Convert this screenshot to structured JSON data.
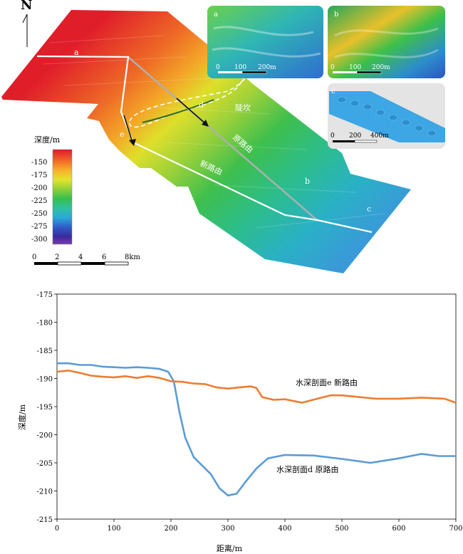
{
  "map": {
    "north_label": "N",
    "depth_legend": {
      "title": "深度/m",
      "ticks": [
        "-150",
        "-175",
        "-200",
        "-225",
        "-250",
        "-275",
        "-300"
      ]
    },
    "scale_bar": {
      "labels": [
        "0",
        "2",
        "4",
        "6",
        "8km"
      ]
    },
    "route_labels": {
      "old": "原路由",
      "new": "新路由",
      "cliff": "陡坎"
    },
    "point_labels": [
      "a",
      "b",
      "c",
      "d",
      "e"
    ],
    "insets": [
      {
        "label": "a",
        "scale_labels": [
          "0",
          "100",
          "200m"
        ]
      },
      {
        "label": "b",
        "scale_labels": [
          "0",
          "100",
          "200m"
        ]
      },
      {
        "label": "c",
        "scale_labels": [
          "0",
          "200",
          "400m"
        ]
      }
    ]
  },
  "chart_data": {
    "type": "line",
    "xlabel": "距离/m",
    "ylabel": "深度/m",
    "xlim": [
      0,
      700
    ],
    "ylim": [
      -215,
      -175
    ],
    "x_ticks": [
      "0",
      "100",
      "200",
      "300",
      "400",
      "500",
      "600",
      "700"
    ],
    "y_ticks": [
      "-175",
      "-180",
      "-185",
      "-190",
      "-195",
      "-200",
      "-205",
      "-210",
      "-215"
    ],
    "series": [
      {
        "name": "水深剖面d 原路由",
        "color": "#5b9bd5",
        "x": [
          0,
          20,
          40,
          60,
          80,
          100,
          120,
          140,
          160,
          180,
          195,
          205,
          215,
          225,
          240,
          255,
          270,
          285,
          300,
          315,
          330,
          350,
          370,
          400,
          450,
          500,
          550,
          600,
          640,
          670,
          700
        ],
        "y": [
          -187.3,
          -187.3,
          -187.6,
          -187.6,
          -187.9,
          -188.0,
          -188.1,
          -188.0,
          -188.1,
          -188.3,
          -188.8,
          -190.5,
          -196.0,
          -200.5,
          -204.0,
          -205.5,
          -207.0,
          -209.5,
          -210.8,
          -210.5,
          -208.5,
          -206.0,
          -204.2,
          -203.6,
          -203.7,
          -204.3,
          -205.0,
          -204.2,
          -203.4,
          -203.8,
          -203.8
        ]
      },
      {
        "name": "水深剖面e 新路由",
        "color": "#ed7d31",
        "x": [
          0,
          20,
          40,
          60,
          80,
          100,
          120,
          140,
          160,
          180,
          200,
          220,
          240,
          260,
          280,
          300,
          320,
          340,
          350,
          360,
          380,
          400,
          430,
          460,
          480,
          500,
          530,
          560,
          600,
          640,
          680,
          700
        ],
        "y": [
          -188.8,
          -188.6,
          -189.0,
          -189.5,
          -189.7,
          -189.8,
          -189.6,
          -189.9,
          -189.6,
          -189.9,
          -190.5,
          -190.6,
          -190.9,
          -191.0,
          -191.6,
          -191.8,
          -191.6,
          -191.4,
          -191.7,
          -193.3,
          -193.8,
          -193.7,
          -194.3,
          -193.5,
          -193.0,
          -193.0,
          -193.3,
          -193.6,
          -193.6,
          -193.4,
          -193.6,
          -194.3
        ]
      }
    ]
  }
}
